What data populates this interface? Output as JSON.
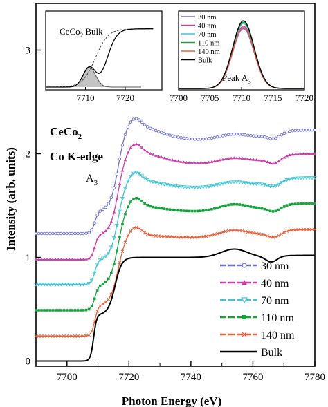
{
  "chart_data": [
    {
      "type": "line",
      "xlabel": "Photon Energy (eV)",
      "ylabel": "Intensity (arb. units)",
      "xlim": [
        7690,
        7780
      ],
      "ylim": [
        -0.05,
        3.45
      ],
      "xticks": [
        7700,
        7720,
        7740,
        7760,
        7780
      ],
      "yticks": [
        0,
        1,
        2,
        3
      ],
      "annotations": [
        "CeCo",
        "2",
        "Co K-edge",
        "A",
        "3"
      ],
      "legend_position": "bottom-right",
      "series": [
        {
          "name": "30 nm",
          "color": "#6b6fd8",
          "marker": "circle",
          "offset": 1.23,
          "pre": 0.0,
          "shoulder": 0.22,
          "peak": 1.06,
          "mid": 0.9,
          "rise": 0.94,
          "wiggle": 0.05,
          "final": 1.0
        },
        {
          "name": "40 nm",
          "color": "#cc3fa8",
          "marker": "triangle",
          "offset": 0.98,
          "pre": 0.0,
          "shoulder": 0.24,
          "peak": 1.06,
          "mid": 0.92,
          "rise": 0.96,
          "wiggle": 0.06,
          "final": 1.02
        },
        {
          "name": "70 nm",
          "color": "#3fc4d4",
          "marker": "triangle-down",
          "offset": 0.74,
          "pre": 0.0,
          "shoulder": 0.24,
          "peak": 1.02,
          "mid": 0.93,
          "rise": 0.97,
          "wiggle": 0.05,
          "final": 1.03
        },
        {
          "name": "110 nm",
          "color": "#16a33c",
          "marker": "square",
          "offset": 0.49,
          "pre": 0.0,
          "shoulder": 0.24,
          "peak": 1.02,
          "mid": 0.95,
          "rise": 1.0,
          "wiggle": 0.05,
          "final": 1.03
        },
        {
          "name": "140 nm",
          "color": "#e8603c",
          "marker": "cross",
          "offset": 0.24,
          "pre": 0.0,
          "shoulder": 0.3,
          "peak": 0.98,
          "mid": 0.95,
          "rise": 1.0,
          "wiggle": 0.05,
          "final": 1.03
        },
        {
          "name": "Bulk",
          "color": "#000000",
          "marker": "none",
          "offset": 0.0,
          "pre": 0.0,
          "shoulder": 0.45,
          "peak": 1.0,
          "mid": 1.0,
          "rise": 1.05,
          "wiggle": 0.04,
          "final": 1.03
        }
      ]
    },
    {
      "type": "area",
      "inset": "left",
      "title": "CeCo",
      "title_sub": "2",
      "title_tail": " Bulk",
      "xticks": [
        7710,
        7720
      ],
      "xlim": [
        7700,
        7724
      ],
      "curves": [
        {
          "name": "bulk edge",
          "color": "#000000",
          "kind": "edge"
        },
        {
          "name": "arctangent",
          "color": "#444444",
          "kind": "step"
        },
        {
          "name": "peak",
          "color": "#555555",
          "kind": "gauss",
          "center": 7711,
          "fill": "#bfbfbf"
        }
      ]
    },
    {
      "type": "line",
      "inset": "right",
      "title": "Peak A",
      "title_sub": "3",
      "xlim": [
        7700,
        7720
      ],
      "xticks": [
        7700,
        7705,
        7710,
        7715,
        7720
      ],
      "legend_position": "top-left",
      "series": [
        {
          "name": "30 nm",
          "color": "#6b6fd8",
          "amplitude": 0.9
        },
        {
          "name": "40 nm",
          "color": "#cc3fa8",
          "amplitude": 0.94
        },
        {
          "name": "70 nm",
          "color": "#3fc4d4",
          "amplitude": 0.98
        },
        {
          "name": "110 nm",
          "color": "#16a33c",
          "amplitude": 1.0
        },
        {
          "name": "140 nm",
          "color": "#e8603c",
          "amplitude": 0.92
        },
        {
          "name": "Bulk",
          "color": "#000000",
          "amplitude": 1.02
        }
      ]
    }
  ]
}
